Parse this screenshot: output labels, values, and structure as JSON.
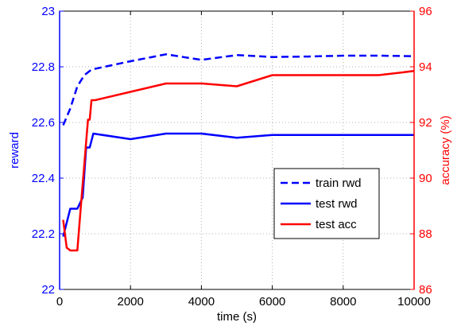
{
  "chart_data": {
    "type": "line",
    "xlabel": "time (s)",
    "ylabel_left": "reward",
    "ylabel_right": "accuracy (%)",
    "xlim": [
      0,
      10000
    ],
    "ylim_left": [
      22,
      23
    ],
    "ylim_right": [
      86,
      96
    ],
    "x_ticks": [
      0,
      2000,
      4000,
      6000,
      8000,
      10000
    ],
    "x_tick_labels": [
      "0",
      "2000",
      "4000",
      "6000",
      "8000",
      "10000"
    ],
    "y_left_ticks": [
      22,
      22.2,
      22.4,
      22.6,
      22.8,
      23
    ],
    "y_left_tick_labels": [
      "22",
      "22.2",
      "22.4",
      "22.6",
      "22.8",
      "23"
    ],
    "y_right_ticks": [
      86,
      88,
      90,
      92,
      94,
      96
    ],
    "y_right_tick_labels": [
      "86",
      "88",
      "90",
      "92",
      "94",
      "96"
    ],
    "grid": true,
    "legend_position": "right-center",
    "colors": {
      "left_axis": "#0000ff",
      "right_axis": "#ff0000",
      "frame": "#000000",
      "grid": "#b0b0b0"
    },
    "series": [
      {
        "name": "train rwd",
        "axis": "left",
        "style": "dashed",
        "color": "#0000ff",
        "x": [
          100,
          300,
          500,
          700,
          900,
          2000,
          3000,
          4000,
          5000,
          6000,
          7000,
          8000,
          9000,
          10000
        ],
        "y": [
          22.59,
          22.65,
          22.73,
          22.77,
          22.79,
          22.82,
          22.845,
          22.825,
          22.842,
          22.835,
          22.837,
          22.84,
          22.84,
          22.838
        ]
      },
      {
        "name": "test rwd",
        "axis": "left",
        "style": "solid",
        "color": "#0000ff",
        "x": [
          100,
          300,
          500,
          650,
          750,
          850,
          950,
          2000,
          3000,
          4000,
          5000,
          6000,
          7000,
          8000,
          9000,
          10000
        ],
        "y": [
          22.19,
          22.29,
          22.29,
          22.33,
          22.51,
          22.51,
          22.56,
          22.54,
          22.56,
          22.56,
          22.545,
          22.555,
          22.555,
          22.555,
          22.555,
          22.555
        ]
      },
      {
        "name": "test acc",
        "axis": "right",
        "style": "solid",
        "color": "#ff0000",
        "x": [
          100,
          200,
          300,
          500,
          600,
          800,
          850,
          900,
          1000,
          2000,
          3000,
          4000,
          5000,
          6000,
          7000,
          8000,
          9000,
          10000
        ],
        "y": [
          88.5,
          87.5,
          87.4,
          87.4,
          89.0,
          92.1,
          92.1,
          92.8,
          92.8,
          93.1,
          93.4,
          93.4,
          93.3,
          93.7,
          93.7,
          93.7,
          93.7,
          93.85
        ]
      }
    ]
  }
}
